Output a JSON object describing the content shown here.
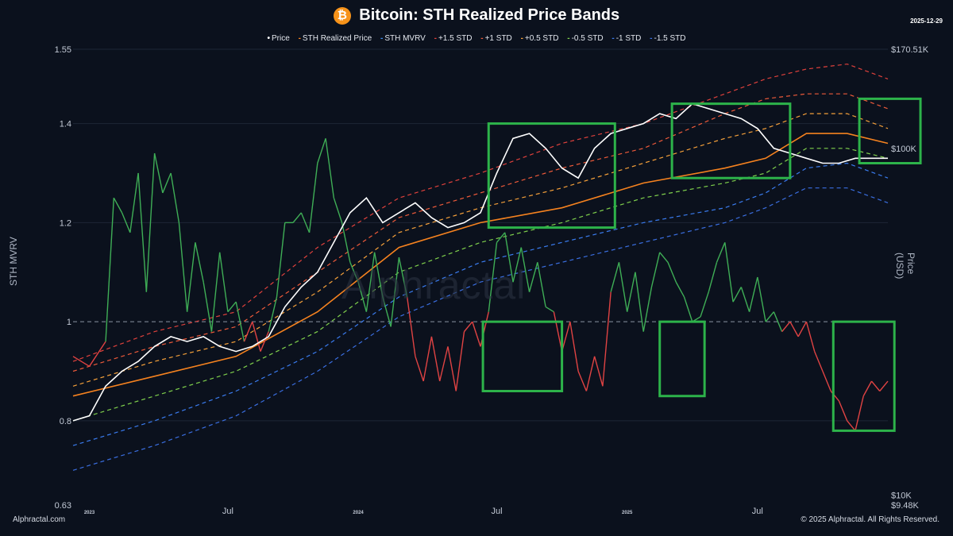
{
  "header": {
    "title": "Bitcoin: STH Realized Price Bands",
    "date": "2025-12-29",
    "btc_symbol": "₿"
  },
  "legend": [
    {
      "label": "Price",
      "color": "#ffffff"
    },
    {
      "label": "STH Realized Price",
      "color": "#f5821f"
    },
    {
      "label": "STH MVRV",
      "color": "#3f8ff0"
    },
    {
      "label": "+1.5 STD",
      "color": "#e0413c"
    },
    {
      "label": "+1 STD",
      "color": "#ee5a3a"
    },
    {
      "label": "+0.5 STD",
      "color": "#f5a03a"
    },
    {
      "label": "-0.5 STD",
      "color": "#7fd04c"
    },
    {
      "label": "-1 STD",
      "color": "#3a7cf0"
    },
    {
      "label": "-1.5 STD",
      "color": "#3a6ee0"
    }
  ],
  "footer": {
    "left": "Alphractal.com",
    "right": "© 2025 Alphractal. All Rights Reserved."
  },
  "watermark": "Alphractal",
  "chart_data": {
    "type": "line",
    "title": "Bitcoin: STH Realized Price Bands",
    "ylabel": "STH MVRV",
    "y2label": "Price (USD)",
    "ylim": [
      0.63,
      1.55
    ],
    "y_ticks": [
      "1.55",
      "1.4",
      "1.2",
      "1",
      "0.8",
      "0.63"
    ],
    "y2_ticks": [
      "$170.51K",
      "$100K",
      "$10K",
      "$9.48K"
    ],
    "x_ticks": [
      "2023",
      "Jul",
      "2024",
      "Jul",
      "2025",
      "Jul"
    ],
    "reference_line": 1,
    "highlight_boxes": [
      {
        "color": "#2db34a",
        "note": "price box 2024"
      },
      {
        "color": "#2db34a",
        "note": "price box 2025 H1"
      },
      {
        "color": "#2db34a",
        "note": "price box 2025 end"
      },
      {
        "color": "#2db34a",
        "note": "MVRV below 1 mid-2024"
      },
      {
        "color": "#2db34a",
        "note": "MVRV below 1 early 2025"
      },
      {
        "color": "#2db34a",
        "note": "MVRV below 1 late 2025"
      }
    ],
    "series": [
      {
        "name": "STH MVRV",
        "color_above": "#3fae56",
        "color_below": "#e04343",
        "x": [
          0,
          0.02,
          0.04,
          0.05,
          0.06,
          0.07,
          0.08,
          0.09,
          0.1,
          0.11,
          0.12,
          0.13,
          0.14,
          0.15,
          0.16,
          0.17,
          0.18,
          0.19,
          0.2,
          0.21,
          0.22,
          0.23,
          0.24,
          0.25,
          0.26,
          0.27,
          0.28,
          0.29,
          0.3,
          0.31,
          0.32,
          0.33,
          0.34,
          0.35,
          0.36,
          0.37,
          0.38,
          0.39,
          0.4,
          0.41,
          0.42,
          0.43,
          0.44,
          0.45,
          0.46,
          0.47,
          0.48,
          0.49,
          0.5,
          0.51,
          0.52,
          0.53,
          0.54,
          0.55,
          0.56,
          0.57,
          0.58,
          0.59,
          0.6,
          0.61,
          0.62,
          0.63,
          0.64,
          0.65,
          0.66,
          0.67,
          0.68,
          0.69,
          0.7,
          0.71,
          0.72,
          0.73,
          0.74,
          0.75,
          0.76,
          0.77,
          0.78,
          0.79,
          0.8,
          0.81,
          0.82,
          0.83,
          0.84,
          0.85,
          0.86,
          0.87,
          0.88,
          0.89,
          0.9,
          0.91,
          0.92,
          0.93,
          0.94,
          0.95,
          0.96,
          0.97,
          0.98,
          0.99,
          1.0
        ],
        "values": [
          0.93,
          0.91,
          0.96,
          1.25,
          1.22,
          1.18,
          1.3,
          1.06,
          1.34,
          1.26,
          1.3,
          1.2,
          1.02,
          1.16,
          1.08,
          0.98,
          1.14,
          1.02,
          1.04,
          0.96,
          1.0,
          0.94,
          0.98,
          1.05,
          1.2,
          1.2,
          1.22,
          1.18,
          1.32,
          1.37,
          1.25,
          1.2,
          1.12,
          1.08,
          1.02,
          1.14,
          1.05,
          0.99,
          1.13,
          1.05,
          0.93,
          0.88,
          0.97,
          0.88,
          0.95,
          0.86,
          0.98,
          1.0,
          0.95,
          1.02,
          1.16,
          1.18,
          1.08,
          1.15,
          1.06,
          1.12,
          1.03,
          1.02,
          0.94,
          1.0,
          0.9,
          0.86,
          0.93,
          0.87,
          1.06,
          1.12,
          1.02,
          1.1,
          0.98,
          1.07,
          1.14,
          1.12,
          1.08,
          1.05,
          1.0,
          1.01,
          1.06,
          1.12,
          1.16,
          1.04,
          1.07,
          1.02,
          1.09,
          1.0,
          1.02,
          0.98,
          1.0,
          0.97,
          1.0,
          0.94,
          0.9,
          0.86,
          0.84,
          0.8,
          0.78,
          0.85,
          0.88,
          0.86,
          0.88
        ]
      },
      {
        "name": "Price",
        "color": "#ffffff",
        "x": [
          0,
          0.02,
          0.04,
          0.06,
          0.08,
          0.1,
          0.12,
          0.14,
          0.16,
          0.18,
          0.2,
          0.22,
          0.24,
          0.26,
          0.28,
          0.3,
          0.32,
          0.34,
          0.36,
          0.38,
          0.4,
          0.42,
          0.44,
          0.46,
          0.48,
          0.5,
          0.52,
          0.54,
          0.56,
          0.58,
          0.6,
          0.62,
          0.64,
          0.66,
          0.68,
          0.7,
          0.72,
          0.74,
          0.76,
          0.78,
          0.8,
          0.82,
          0.84,
          0.86,
          0.88,
          0.9,
          0.92,
          0.94,
          0.96,
          0.98,
          1.0
        ],
        "values": [
          0.8,
          0.81,
          0.87,
          0.9,
          0.92,
          0.95,
          0.97,
          0.96,
          0.97,
          0.95,
          0.94,
          0.95,
          0.97,
          1.03,
          1.07,
          1.1,
          1.16,
          1.22,
          1.25,
          1.2,
          1.22,
          1.24,
          1.21,
          1.19,
          1.2,
          1.22,
          1.3,
          1.37,
          1.38,
          1.35,
          1.31,
          1.29,
          1.35,
          1.38,
          1.39,
          1.4,
          1.42,
          1.41,
          1.44,
          1.43,
          1.42,
          1.41,
          1.39,
          1.35,
          1.34,
          1.33,
          1.32,
          1.32,
          1.33,
          1.33,
          1.33
        ]
      },
      {
        "name": "STH Realized Price",
        "color": "#f5821f",
        "dash": "",
        "x": [
          0,
          0.1,
          0.2,
          0.3,
          0.4,
          0.5,
          0.6,
          0.7,
          0.8,
          0.85,
          0.9,
          0.95,
          1.0
        ],
        "values": [
          0.85,
          0.89,
          0.93,
          1.02,
          1.15,
          1.2,
          1.23,
          1.28,
          1.31,
          1.33,
          1.38,
          1.38,
          1.36
        ]
      },
      {
        "name": "+1.5 STD",
        "color": "#e0413c",
        "dash": "5,4",
        "x": [
          0,
          0.1,
          0.2,
          0.3,
          0.4,
          0.5,
          0.6,
          0.7,
          0.8,
          0.85,
          0.9,
          0.95,
          1.0
        ],
        "values": [
          0.92,
          0.98,
          1.02,
          1.15,
          1.25,
          1.3,
          1.36,
          1.4,
          1.46,
          1.49,
          1.51,
          1.52,
          1.49
        ]
      },
      {
        "name": "+1 STD",
        "color": "#ee5a3a",
        "dash": "5,4",
        "x": [
          0,
          0.1,
          0.2,
          0.3,
          0.4,
          0.5,
          0.6,
          0.7,
          0.8,
          0.85,
          0.9,
          0.95,
          1.0
        ],
        "values": [
          0.9,
          0.95,
          0.99,
          1.1,
          1.21,
          1.26,
          1.31,
          1.35,
          1.42,
          1.45,
          1.46,
          1.46,
          1.43
        ]
      },
      {
        "name": "+0.5 STD",
        "color": "#f5a03a",
        "dash": "5,4",
        "x": [
          0,
          0.1,
          0.2,
          0.3,
          0.4,
          0.5,
          0.6,
          0.7,
          0.8,
          0.85,
          0.9,
          0.95,
          1.0
        ],
        "values": [
          0.87,
          0.92,
          0.96,
          1.06,
          1.18,
          1.23,
          1.27,
          1.32,
          1.37,
          1.39,
          1.42,
          1.42,
          1.39
        ]
      },
      {
        "name": "-0.5 STD",
        "color": "#7fd04c",
        "dash": "5,4",
        "x": [
          0,
          0.1,
          0.2,
          0.3,
          0.4,
          0.5,
          0.6,
          0.7,
          0.8,
          0.85,
          0.9,
          0.95,
          1.0
        ],
        "values": [
          0.8,
          0.85,
          0.9,
          0.98,
          1.1,
          1.16,
          1.2,
          1.25,
          1.28,
          1.3,
          1.35,
          1.35,
          1.33
        ]
      },
      {
        "name": "-1 STD",
        "color": "#3a7cf0",
        "dash": "5,4",
        "x": [
          0,
          0.1,
          0.2,
          0.3,
          0.4,
          0.5,
          0.6,
          0.7,
          0.8,
          0.85,
          0.9,
          0.95,
          1.0
        ],
        "values": [
          0.75,
          0.8,
          0.86,
          0.94,
          1.05,
          1.12,
          1.16,
          1.2,
          1.23,
          1.26,
          1.31,
          1.32,
          1.29
        ]
      },
      {
        "name": "-1.5 STD",
        "color": "#3a6ee0",
        "dash": "5,4",
        "x": [
          0,
          0.1,
          0.2,
          0.3,
          0.4,
          0.5,
          0.6,
          0.7,
          0.8,
          0.85,
          0.9,
          0.95,
          1.0
        ],
        "values": [
          0.7,
          0.75,
          0.81,
          0.9,
          1.01,
          1.08,
          1.12,
          1.16,
          1.2,
          1.23,
          1.27,
          1.27,
          1.24
        ]
      }
    ]
  }
}
